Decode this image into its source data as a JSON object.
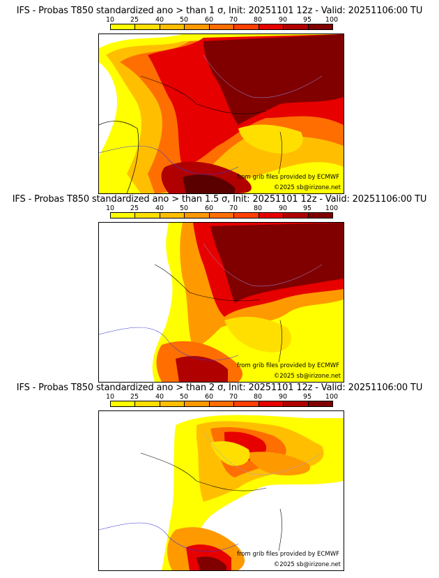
{
  "colorbar": {
    "labels": [
      "10",
      "25",
      "40",
      "50",
      "60",
      "70",
      "80",
      "90",
      "95",
      "100"
    ],
    "colors": [
      "#ffff00",
      "#ffdf00",
      "#ffbf00",
      "#ff9900",
      "#ff6e00",
      "#ff4000",
      "#e60000",
      "#b00000",
      "#800000",
      "#5a0000"
    ]
  },
  "panels": [
    {
      "title": "IFS - Probas T850  standardized ano > than 1 σ, Init: 20251101 12z - Valid: 20251106:00 TU",
      "credit_source": "from grib files provided by ECMWF",
      "credit_copy": "©2025 sb@irizone.net"
    },
    {
      "title": "IFS - Probas T850  standardized ano > than 1.5 σ, Init: 20251101 12z - Valid: 20251106:00 TU",
      "credit_source": "from grib files provided by ECMWF",
      "credit_copy": "©2025 sb@irizone.net"
    },
    {
      "title": "IFS - Probas T850  standardized ano > than 2 σ, Init: 20251101 12z - Valid: 20251106:00 TU",
      "credit_source": "from grib files provided by ECMWF",
      "credit_copy": "©2025 sb@irizone.net"
    }
  ]
}
